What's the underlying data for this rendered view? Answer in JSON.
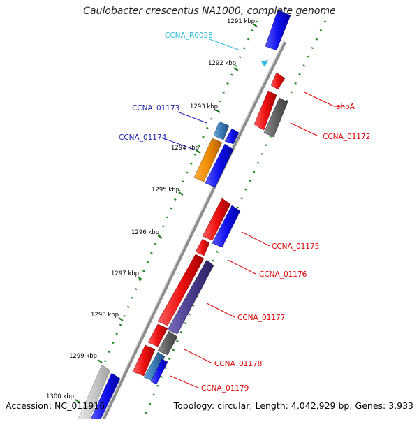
{
  "header": {
    "title": "Caulobacter crescentus NA1000, complete genome"
  },
  "footer": {
    "accession": "Accession: NC_011916",
    "summary": "Topology: circular; Length: 4,042,929 bp; Genes: 3,933"
  },
  "ruler": {
    "ticks": [
      {
        "kbp": 1291,
        "label": "1291 kbp"
      },
      {
        "kbp": 1292,
        "label": "1292 kbp"
      },
      {
        "kbp": 1293,
        "label": "1293 kbp"
      },
      {
        "kbp": 1294,
        "label": "1294 kbp"
      },
      {
        "kbp": 1295,
        "label": "1295 kbp"
      },
      {
        "kbp": 1296,
        "label": "1296 kbp"
      },
      {
        "kbp": 1297,
        "label": "1297 kbp"
      },
      {
        "kbp": 1298,
        "label": "1298 kbp"
      },
      {
        "kbp": 1299,
        "label": "1299 kbp"
      },
      {
        "kbp": 1300,
        "label": "1300 kbp"
      }
    ]
  },
  "gene_labels": [
    {
      "name": "CCNA_R0028",
      "color": "#33bbdd"
    },
    {
      "name": "CCNA_01173",
      "color": "#1a1aaa"
    },
    {
      "name": "CCNA_01174",
      "color": "#1a1aaa"
    },
    {
      "name": "shpA",
      "color": "#dd0000"
    },
    {
      "name": "CCNA_01172",
      "color": "#dd0000"
    },
    {
      "name": "CCNA_01175",
      "color": "#dd0000"
    },
    {
      "name": "CCNA_01176",
      "color": "#dd0000"
    },
    {
      "name": "CCNA_01177",
      "color": "#dd0000"
    },
    {
      "name": "CCNA_01178",
      "color": "#dd0000"
    },
    {
      "name": "CCNA_01179",
      "color": "#dd0000"
    }
  ],
  "colors": {
    "forward_gene": "#e01010",
    "reverse_gene": "#1010e0",
    "gc_skew": "#1a8a1a",
    "orange_gene": "#f08c00",
    "grey_gene": "#606060",
    "purple_gene": "#4a3c8c",
    "steelblue_gene": "#3a7ab5",
    "backbone": "#8c8c8c",
    "rna": "#33bbdd"
  }
}
